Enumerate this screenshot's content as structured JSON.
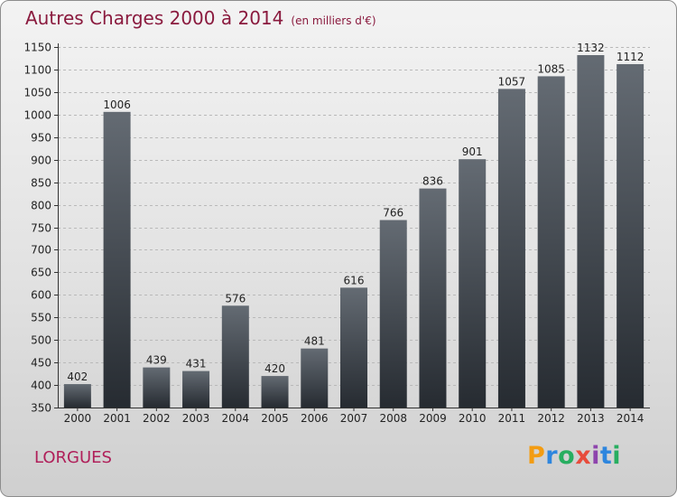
{
  "title": "Autres Charges 2000 à 2014",
  "subtitle": "(en milliers d'€)",
  "place_name": "LORGUES",
  "brand": {
    "text": "Proxiti",
    "letter_colors": [
      "#f39c12",
      "#2e86de",
      "#27ae60",
      "#e74c3c",
      "#8e44ad",
      "#2e86de",
      "#27ae60"
    ]
  },
  "colors": {
    "title": "#8a1a3e",
    "place": "#b0205a",
    "bar_top": "#646b73",
    "bar_bottom": "#262b31"
  },
  "chart_data": {
    "type": "bar",
    "title": "Autres Charges 2000 à 2014",
    "categories": [
      "2000",
      "2001",
      "2002",
      "2003",
      "2004",
      "2005",
      "2006",
      "2007",
      "2008",
      "2009",
      "2010",
      "2011",
      "2012",
      "2013",
      "2014"
    ],
    "values": [
      402,
      1006,
      439,
      431,
      576,
      420,
      481,
      616,
      766,
      836,
      901,
      1057,
      1085,
      1132,
      1112
    ],
    "ylim": [
      350,
      1150
    ],
    "yticks": [
      350,
      400,
      450,
      500,
      550,
      600,
      650,
      700,
      750,
      800,
      850,
      900,
      950,
      1000,
      1050,
      1100,
      1150
    ],
    "grid": true,
    "data_labels": true
  }
}
